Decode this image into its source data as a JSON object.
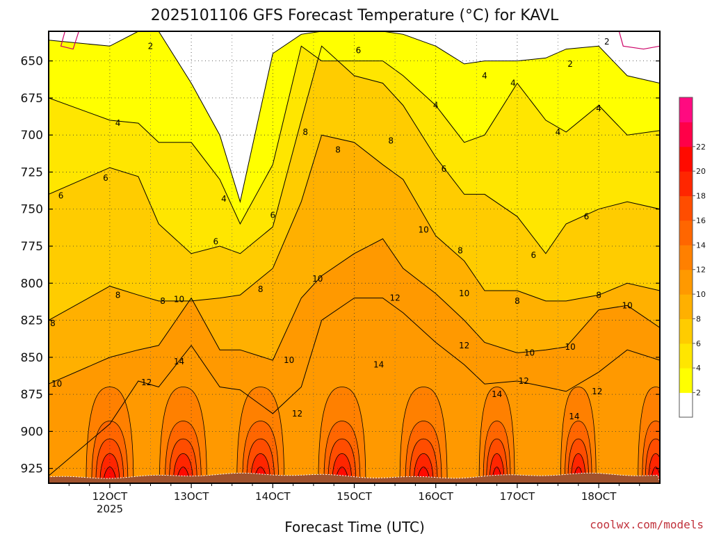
{
  "chart_data": {
    "type": "contour",
    "title": "2025101106 GFS Forecast Temperature (°C) for KAVL",
    "xlabel": "Forecast Time (UTC)",
    "ylabel": "",
    "x_ticks": [
      "12OCT",
      "13OCT",
      "14OCT",
      "15OCT",
      "16OCT",
      "17OCT",
      "18OCT"
    ],
    "x_year_label": "2025",
    "y_ticks": [
      650,
      675,
      700,
      725,
      750,
      775,
      800,
      825,
      850,
      875,
      900,
      925
    ],
    "y_axis": "pressure (hPa), increasing downward",
    "ylim": [
      630,
      935
    ],
    "xlim_days": [
      11.25,
      18.75
    ],
    "grid": true,
    "colorbar": {
      "levels": [
        0,
        2,
        4,
        6,
        8,
        10,
        12,
        14,
        16,
        18,
        20,
        22,
        24
      ],
      "labels": [
        "2",
        "4",
        "6",
        "8",
        "10",
        "12",
        "14",
        "16",
        "18",
        "20",
        "22"
      ],
      "colors": [
        "#ffffff",
        "#ffff00",
        "#ffe600",
        "#ffcc00",
        "#ffb000",
        "#ff9900",
        "#ff8000",
        "#ff6600",
        "#ff4d00",
        "#ff2600",
        "#ff0a00",
        "#ff0048",
        "#ff0a80"
      ]
    },
    "profile_time_days": [
      11.25,
      12.0,
      12.35,
      12.6,
      13.0,
      13.35,
      13.6,
      14.0,
      14.35,
      14.6,
      15.0,
      15.35,
      15.6,
      16.0,
      16.35,
      16.6,
      17.0,
      17.35,
      17.6,
      18.0,
      18.35,
      18.75
    ],
    "profile_pressure_hpa": [
      630,
      650,
      675,
      700,
      725,
      750,
      775,
      800,
      825,
      850,
      875,
      900,
      925
    ],
    "contour_labels": [
      {
        "v": "2",
        "t": 12.5,
        "p": 640
      },
      {
        "v": "2",
        "t": 17.65,
        "p": 652
      },
      {
        "v": "2",
        "t": 18.1,
        "p": 637
      },
      {
        "v": "4",
        "t": 12.1,
        "p": 692
      },
      {
        "v": "4",
        "t": 13.4,
        "p": 743
      },
      {
        "v": "4",
        "t": 16.0,
        "p": 680
      },
      {
        "v": "4",
        "t": 16.6,
        "p": 660
      },
      {
        "v": "4",
        "t": 16.95,
        "p": 665
      },
      {
        "v": "4",
        "t": 17.5,
        "p": 698
      },
      {
        "v": "4",
        "t": 18.0,
        "p": 682
      },
      {
        "v": "6",
        "t": 11.4,
        "p": 741
      },
      {
        "v": "6",
        "t": 11.95,
        "p": 729
      },
      {
        "v": "6",
        "t": 13.3,
        "p": 772
      },
      {
        "v": "6",
        "t": 14.0,
        "p": 754
      },
      {
        "v": "6",
        "t": 15.05,
        "p": 643
      },
      {
        "v": "6",
        "t": 16.1,
        "p": 723
      },
      {
        "v": "6",
        "t": 17.2,
        "p": 781
      },
      {
        "v": "6",
        "t": 17.85,
        "p": 755
      },
      {
        "v": "8",
        "t": 12.1,
        "p": 808
      },
      {
        "v": "8",
        "t": 12.65,
        "p": 812
      },
      {
        "v": "8",
        "t": 13.85,
        "p": 804
      },
      {
        "v": "8",
        "t": 14.4,
        "p": 698
      },
      {
        "v": "8",
        "t": 14.8,
        "p": 710
      },
      {
        "v": "8",
        "t": 15.45,
        "p": 704
      },
      {
        "v": "8",
        "t": 16.3,
        "p": 778
      },
      {
        "v": "8",
        "t": 17.0,
        "p": 812
      },
      {
        "v": "8",
        "t": 18.0,
        "p": 808
      },
      {
        "v": "8",
        "t": 11.3,
        "p": 827
      },
      {
        "v": "10",
        "t": 11.35,
        "p": 868
      },
      {
        "v": "10",
        "t": 12.85,
        "p": 811
      },
      {
        "v": "10",
        "t": 14.2,
        "p": 852
      },
      {
        "v": "10",
        "t": 14.55,
        "p": 797
      },
      {
        "v": "10",
        "t": 15.85,
        "p": 764
      },
      {
        "v": "10",
        "t": 16.35,
        "p": 807
      },
      {
        "v": "10",
        "t": 17.15,
        "p": 847
      },
      {
        "v": "10",
        "t": 17.65,
        "p": 843
      },
      {
        "v": "10",
        "t": 18.35,
        "p": 815
      },
      {
        "v": "12",
        "t": 12.45,
        "p": 867
      },
      {
        "v": "12",
        "t": 14.3,
        "p": 888
      },
      {
        "v": "12",
        "t": 15.5,
        "p": 810
      },
      {
        "v": "12",
        "t": 16.35,
        "p": 842
      },
      {
        "v": "12",
        "t": 17.08,
        "p": 866
      },
      {
        "v": "12",
        "t": 17.98,
        "p": 873
      },
      {
        "v": "14",
        "t": 12.85,
        "p": 853
      },
      {
        "v": "14",
        "t": 15.3,
        "p": 855
      },
      {
        "v": "14",
        "t": 16.75,
        "p": 875
      },
      {
        "v": "14",
        "t": 17.7,
        "p": 890
      }
    ]
  },
  "credit": "coolwx.com/models"
}
